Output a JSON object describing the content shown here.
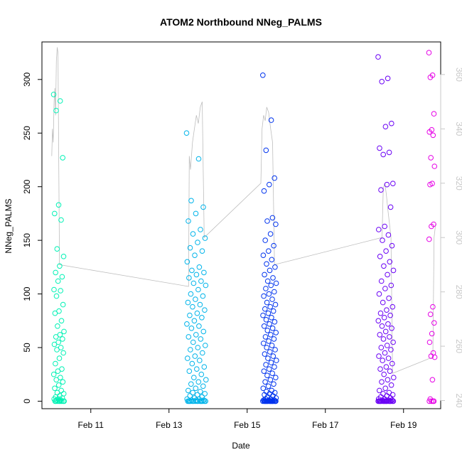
{
  "chart_data": {
    "type": "scatter",
    "title": "ATOM2 Northbound NNeg_PALMS",
    "xlabel": "Date",
    "ylabel": "NNeg_PALMS",
    "xlim_days": [
      9.75,
      19.95
    ],
    "ylim": [
      -7,
      335
    ],
    "x_ticks": [
      {
        "day": 11,
        "label": "Feb 11"
      },
      {
        "day": 13,
        "label": "Feb 13"
      },
      {
        "day": 15,
        "label": "Feb 15"
      },
      {
        "day": 17,
        "label": "Feb 17"
      },
      {
        "day": 19,
        "label": "Feb 19"
      }
    ],
    "y_ticks": [
      0,
      50,
      100,
      150,
      200,
      250,
      300
    ],
    "secondary_axis": {
      "ylim": [
        237,
        372
      ],
      "ticks": [
        240,
        260,
        280,
        300,
        320,
        340,
        360
      ],
      "color": "#c8c8c8"
    },
    "grid": false,
    "point_colors": [
      "#00ffb4",
      "#00bfff",
      "#0000ff",
      "#7f00ff",
      "#ff00ff"
    ],
    "line_color": "#bebebe",
    "flights": [
      {
        "x_range": [
          10.05,
          10.32
        ],
        "color": "#00f2b5",
        "values": [
          286,
          280,
          271,
          227,
          183,
          175,
          169,
          142,
          135,
          126,
          120,
          116,
          112,
          104,
          103,
          98,
          90,
          84,
          82,
          75,
          70,
          65,
          62,
          60,
          58,
          55,
          53,
          50,
          48,
          45,
          40,
          35,
          30,
          28,
          25,
          22,
          20,
          18,
          15,
          12,
          10,
          8,
          7,
          5,
          4,
          3,
          2,
          2,
          1,
          1,
          0,
          0,
          0,
          0,
          0,
          0,
          0,
          0
        ]
      },
      {
        "x_range": [
          13.45,
          13.95
        ],
        "color": "#00b4ea",
        "values": [
          250,
          226,
          187,
          181,
          175,
          168,
          160,
          156,
          152,
          148,
          143,
          140,
          136,
          130,
          125,
          122,
          120,
          118,
          115,
          112,
          110,
          108,
          104,
          100,
          98,
          95,
          92,
          90,
          88,
          85,
          82,
          80,
          78,
          75,
          72,
          70,
          68,
          65,
          62,
          60,
          58,
          55,
          52,
          50,
          48,
          45,
          42,
          40,
          38,
          35,
          32,
          30,
          28,
          25,
          22,
          20,
          18,
          16,
          14,
          12,
          10,
          9,
          8,
          7,
          6,
          5,
          4,
          3,
          2,
          2,
          1,
          1,
          1,
          0,
          0,
          0,
          0,
          0,
          0,
          0,
          0,
          0,
          0,
          0,
          0,
          0,
          0,
          0
        ]
      },
      {
        "x_range": [
          15.4,
          15.75
        ],
        "color": "#0033ee",
        "values": [
          304,
          262,
          234,
          208,
          202,
          196,
          171,
          168,
          165,
          156,
          150,
          145,
          140,
          136,
          132,
          128,
          125,
          122,
          118,
          115,
          112,
          110,
          108,
          105,
          102,
          100,
          98,
          95,
          92,
          90,
          88,
          86,
          84,
          82,
          80,
          78,
          76,
          74,
          72,
          70,
          68,
          66,
          64,
          62,
          60,
          58,
          56,
          54,
          52,
          50,
          48,
          46,
          44,
          42,
          40,
          38,
          36,
          34,
          32,
          30,
          28,
          26,
          24,
          22,
          20,
          18,
          16,
          14,
          12,
          10,
          9,
          8,
          7,
          6,
          5,
          4,
          3,
          2,
          2,
          1,
          1,
          1,
          0,
          0,
          0,
          0,
          0,
          0,
          0,
          0,
          0,
          0,
          0,
          0,
          0,
          0,
          0,
          0,
          0,
          0
        ]
      },
      {
        "x_range": [
          18.35,
          18.75
        ],
        "color": "#6a00f5",
        "values": [
          321,
          301,
          298,
          259,
          256,
          236,
          232,
          230,
          203,
          202,
          197,
          181,
          163,
          160,
          155,
          150,
          145,
          140,
          135,
          130,
          126,
          122,
          118,
          112,
          108,
          105,
          100,
          96,
          92,
          88,
          85,
          82,
          80,
          78,
          75,
          72,
          70,
          68,
          65,
          62,
          60,
          58,
          55,
          52,
          50,
          48,
          45,
          42,
          40,
          38,
          35,
          32,
          30,
          28,
          25,
          22,
          20,
          18,
          15,
          12,
          10,
          8,
          7,
          6,
          5,
          4,
          3,
          2,
          2,
          1,
          1,
          1,
          0,
          0,
          0,
          0,
          0,
          0,
          0,
          0,
          0,
          0,
          0,
          0,
          0,
          0,
          0,
          0,
          0,
          0
        ]
      },
      {
        "x_range": [
          19.65,
          19.8
        ],
        "color": "#e600e6",
        "values": [
          325,
          304,
          302,
          268,
          253,
          251,
          248,
          227,
          219,
          203,
          202,
          165,
          163,
          151,
          88,
          81,
          73,
          63,
          55,
          45,
          42,
          41,
          20,
          2,
          0,
          0,
          0,
          0
        ]
      }
    ],
    "altitude_trace": [
      {
        "day": 10.0,
        "alt": 330
      },
      {
        "day": 10.02,
        "alt": 340
      },
      {
        "day": 10.04,
        "alt": 335
      },
      {
        "day": 10.06,
        "alt": 350
      },
      {
        "day": 10.08,
        "alt": 355
      },
      {
        "day": 10.1,
        "alt": 345
      },
      {
        "day": 10.12,
        "alt": 365
      },
      {
        "day": 10.14,
        "alt": 370
      },
      {
        "day": 10.16,
        "alt": 368
      },
      {
        "day": 10.18,
        "alt": 330
      },
      {
        "day": 10.2,
        "alt": 290
      },
      {
        "day": 13.5,
        "alt": 282
      },
      {
        "day": 13.52,
        "alt": 330
      },
      {
        "day": 13.55,
        "alt": 325
      },
      {
        "day": 13.6,
        "alt": 335
      },
      {
        "day": 13.65,
        "alt": 340
      },
      {
        "day": 13.7,
        "alt": 345
      },
      {
        "day": 13.75,
        "alt": 342
      },
      {
        "day": 13.8,
        "alt": 348
      },
      {
        "day": 13.85,
        "alt": 350
      },
      {
        "day": 13.9,
        "alt": 300
      },
      {
        "day": 15.35,
        "alt": 320
      },
      {
        "day": 15.38,
        "alt": 340
      },
      {
        "day": 15.42,
        "alt": 345
      },
      {
        "day": 15.46,
        "alt": 343
      },
      {
        "day": 15.5,
        "alt": 348
      },
      {
        "day": 15.55,
        "alt": 346
      },
      {
        "day": 15.6,
        "alt": 340
      },
      {
        "day": 15.65,
        "alt": 335
      },
      {
        "day": 15.7,
        "alt": 290
      },
      {
        "day": 18.45,
        "alt": 300
      },
      {
        "day": 18.48,
        "alt": 318
      },
      {
        "day": 18.52,
        "alt": 320
      },
      {
        "day": 18.56,
        "alt": 316
      },
      {
        "day": 18.6,
        "alt": 310
      },
      {
        "day": 18.64,
        "alt": 305
      },
      {
        "day": 18.68,
        "alt": 300
      },
      {
        "day": 18.72,
        "alt": 250
      },
      {
        "day": 19.75,
        "alt": 256
      },
      {
        "day": 19.78,
        "alt": 300
      },
      {
        "day": 19.82,
        "alt": 305
      }
    ]
  }
}
